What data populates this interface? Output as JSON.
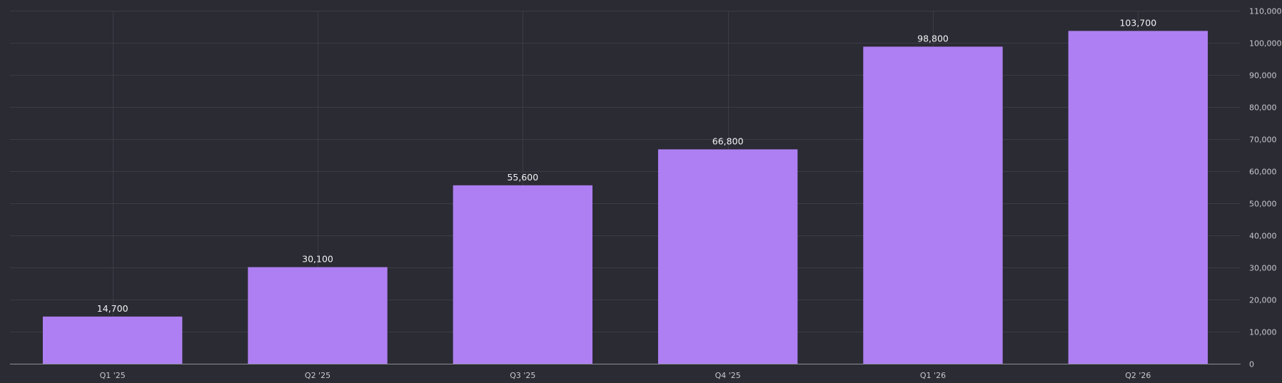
{
  "theme": {
    "background": "#2a2b33",
    "bar_color": "#ae7ff2",
    "grid_color": "#3b3c45",
    "text_color": "#c9c9cf",
    "label_color": "#f2f2f5"
  },
  "chart_data": {
    "type": "bar",
    "categories": [
      "Q1 '25",
      "Q2 '25",
      "Q3 '25",
      "Q4 '25",
      "Q1 '26",
      "Q2 '26"
    ],
    "values": [
      14700,
      30100,
      55600,
      66800,
      98800,
      103700
    ],
    "data_labels": [
      "14,700",
      "30,100",
      "55,600",
      "66,800",
      "98,800",
      "103,700"
    ],
    "title": "",
    "xlabel": "",
    "ylabel": "",
    "ylim": [
      0,
      110000
    ],
    "yticks": [
      0,
      10000,
      20000,
      30000,
      40000,
      50000,
      60000,
      70000,
      80000,
      90000,
      100000,
      110000
    ],
    "ytick_labels": [
      "0",
      "10,000",
      "20,000",
      "30,000",
      "40,000",
      "50,000",
      "60,000",
      "70,000",
      "80,000",
      "90,000",
      "100,000",
      "110,000"
    ],
    "y_axis_side": "right",
    "grid": true,
    "legend": "none"
  }
}
